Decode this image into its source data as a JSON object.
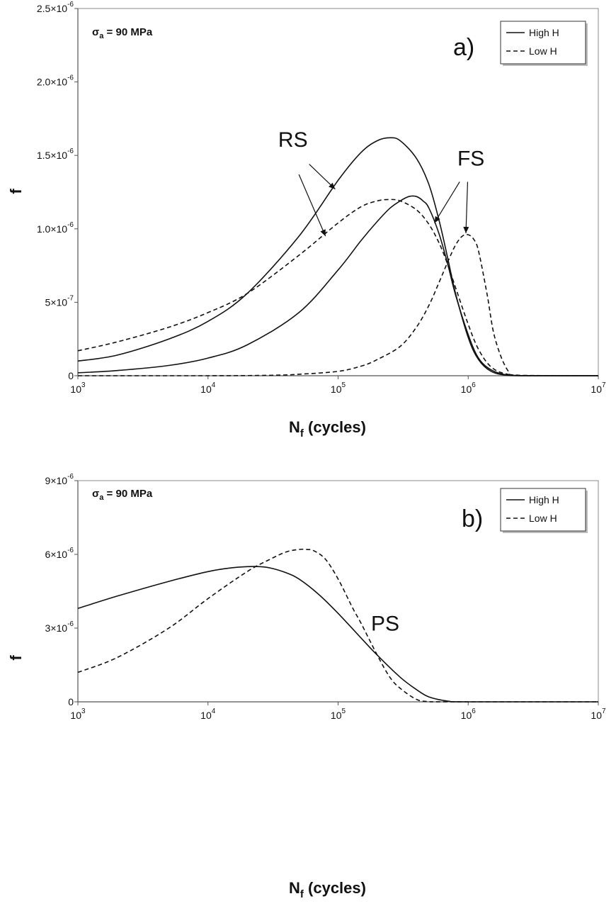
{
  "chart_data": [
    {
      "type": "line",
      "panel_label": "a)",
      "stress_label": {
        "sigma": "σ",
        "sub": "a",
        "rest": " = 90 MPa"
      },
      "xlabel": {
        "main": "N",
        "sub": "f",
        "rest": " (cycles)"
      },
      "ylabel": "f",
      "x_scale": "log",
      "xlim": [
        1000,
        10000000
      ],
      "ylim": [
        0,
        2.5e-06
      ],
      "x_ticks": [
        {
          "value": 1000,
          "base": "10",
          "exp": "3"
        },
        {
          "value": 10000,
          "base": "10",
          "exp": "4"
        },
        {
          "value": 100000,
          "base": "10",
          "exp": "5"
        },
        {
          "value": 1000000,
          "base": "10",
          "exp": "6"
        },
        {
          "value": 10000000,
          "base": "10",
          "exp": "7"
        }
      ],
      "y_ticks": [
        {
          "value": 0,
          "mant": "0",
          "exp": ""
        },
        {
          "value": 5e-07,
          "mant": "5×10",
          "exp": "-7"
        },
        {
          "value": 1e-06,
          "mant": "1.0×10",
          "exp": "-6"
        },
        {
          "value": 1.5e-06,
          "mant": "1.5×10",
          "exp": "-6"
        },
        {
          "value": 2e-06,
          "mant": "2.0×10",
          "exp": "-6"
        },
        {
          "value": 2.5e-06,
          "mant": "2.5×10",
          "exp": "-6"
        }
      ],
      "legend": [
        {
          "label": "High H",
          "style": "solid"
        },
        {
          "label": "Low H",
          "style": "dashed"
        }
      ],
      "series": [
        {
          "name": "High H (RS)",
          "style": "solid",
          "x": [
            1000,
            2000,
            5000,
            10000,
            20000,
            50000,
            100000,
            150000,
            200000,
            250000,
            300000,
            400000,
            500000,
            600000,
            700000,
            800000,
            1000000,
            1200000,
            1500000,
            2000000,
            3000000,
            10000000
          ],
          "y": [
            1e-07,
            1.4e-07,
            2.5e-07,
            3.7e-07,
            5.6e-07,
            9.5e-07,
            1.33e-06,
            1.52e-06,
            1.6e-06,
            1.62e-06,
            1.6e-06,
            1.48e-06,
            1.3e-06,
            1.05e-06,
            7.9e-07,
            5.6e-07,
            2.6e-07,
            1.1e-07,
            3e-08,
            3e-09,
            0,
            0
          ]
        },
        {
          "name": "Low H (RS)",
          "style": "dashed",
          "x": [
            1000,
            2000,
            5000,
            10000,
            20000,
            50000,
            100000,
            150000,
            200000,
            250000,
            300000,
            400000,
            500000,
            600000,
            700000,
            800000,
            1000000,
            1200000,
            1500000,
            2000000,
            3000000,
            10000000
          ],
          "y": [
            1.7e-07,
            2.3e-07,
            3.3e-07,
            4.3e-07,
            5.6e-07,
            8.2e-07,
            1.04e-06,
            1.15e-06,
            1.19e-06,
            1.2e-06,
            1.19e-06,
            1.13e-06,
            1.03e-06,
            9e-07,
            7.5e-07,
            6e-07,
            3.5e-07,
            1.8e-07,
            6e-08,
            1e-08,
            0,
            0
          ]
        },
        {
          "name": "High H (FS)",
          "style": "solid",
          "x": [
            1000,
            2000,
            5000,
            10000,
            20000,
            50000,
            100000,
            150000,
            200000,
            250000,
            300000,
            350000,
            400000,
            450000,
            500000,
            600000,
            700000,
            800000,
            1000000,
            1200000,
            1500000,
            2000000,
            3000000,
            10000000
          ],
          "y": [
            2e-08,
            3.5e-08,
            7e-08,
            1.2e-07,
            2.1e-07,
            4.3e-07,
            7.2e-07,
            9.2e-07,
            1.05e-06,
            1.14e-06,
            1.19e-06,
            1.22e-06,
            1.22e-06,
            1.19e-06,
            1.14e-06,
            9.6e-07,
            7.5e-07,
            5.5e-07,
            2.8e-07,
            1.2e-07,
            4e-08,
            5e-09,
            0,
            0
          ]
        },
        {
          "name": "Low H (FS)",
          "style": "dashed",
          "x": [
            1000,
            10000,
            30000,
            50000,
            100000,
            150000,
            200000,
            300000,
            400000,
            500000,
            600000,
            700000,
            800000,
            900000,
            1000000,
            1100000,
            1200000,
            1400000,
            1600000,
            2000000,
            2500000,
            10000000
          ],
          "y": [
            0,
            0,
            3e-09,
            1e-08,
            3e-08,
            6.5e-08,
            1.1e-07,
            2e-07,
            3.3e-07,
            4.8e-07,
            6.4e-07,
            7.8e-07,
            8.9e-07,
            9.5e-07,
            9.6e-07,
            9.3e-07,
            8.5e-07,
            5.5e-07,
            2.6e-07,
            4e-08,
            3e-09,
            0
          ]
        }
      ],
      "annotations": [
        {
          "text": "RS",
          "x": 45000,
          "y": 1.56e-06,
          "arrows": [
            {
              "x": 95000,
              "y": 1.27e-06,
              "fx": 60000,
              "fy": 1.44e-06
            },
            {
              "x": 80000,
              "y": 9.5e-07,
              "fx": 50000,
              "fy": 1.37e-06
            }
          ]
        },
        {
          "text": "FS",
          "x": 1050000,
          "y": 1.43e-06,
          "arrows": [
            {
              "x": 550000,
              "y": 1.04e-06,
              "fx": 860000,
              "fy": 1.32e-06
            },
            {
              "x": 960000,
              "y": 9.7e-07,
              "fx": 990000,
              "fy": 1.32e-06
            }
          ]
        }
      ]
    },
    {
      "type": "line",
      "panel_label": "b)",
      "stress_label": {
        "sigma": "σ",
        "sub": "a",
        "rest": " = 90 MPa"
      },
      "xlabel": {
        "main": "N",
        "sub": "f",
        "rest": " (cycles)"
      },
      "ylabel": "f",
      "x_scale": "log",
      "xlim": [
        1000,
        10000000
      ],
      "ylim": [
        0,
        9e-06
      ],
      "x_ticks": [
        {
          "value": 1000,
          "base": "10",
          "exp": "3"
        },
        {
          "value": 10000,
          "base": "10",
          "exp": "4"
        },
        {
          "value": 100000,
          "base": "10",
          "exp": "5"
        },
        {
          "value": 1000000,
          "base": "10",
          "exp": "6"
        },
        {
          "value": 10000000,
          "base": "10",
          "exp": "7"
        }
      ],
      "y_ticks": [
        {
          "value": 0,
          "mant": "0",
          "exp": ""
        },
        {
          "value": 3e-06,
          "mant": "3×10",
          "exp": "-6"
        },
        {
          "value": 6e-06,
          "mant": "6×10",
          "exp": "-6"
        },
        {
          "value": 9e-06,
          "mant": "9×10",
          "exp": "-6"
        }
      ],
      "legend": [
        {
          "label": "High H",
          "style": "solid"
        },
        {
          "label": "Low H",
          "style": "dashed"
        }
      ],
      "series": [
        {
          "name": "High H (PS)",
          "style": "solid",
          "x": [
            1000,
            2000,
            5000,
            10000,
            15000,
            20000,
            25000,
            30000,
            40000,
            50000,
            70000,
            100000,
            150000,
            200000,
            300000,
            400000,
            500000,
            700000,
            1000000,
            10000000
          ],
          "y": [
            3.8e-06,
            4.3e-06,
            4.9e-06,
            5.3e-06,
            5.45e-06,
            5.5e-06,
            5.5e-06,
            5.45e-06,
            5.25e-06,
            5e-06,
            4.4e-06,
            3.6e-06,
            2.6e-06,
            1.9e-06,
            1e-06,
            5e-07,
            2e-07,
            3e-08,
            0,
            0
          ]
        },
        {
          "name": "Low H (PS)",
          "style": "dashed",
          "x": [
            1000,
            2000,
            5000,
            10000,
            20000,
            30000,
            40000,
            50000,
            57000,
            65000,
            80000,
            100000,
            130000,
            150000,
            200000,
            250000,
            300000,
            400000,
            500000,
            700000,
            10000000
          ],
          "y": [
            1.2e-06,
            1.8e-06,
            3e-06,
            4.2e-06,
            5.3e-06,
            5.8e-06,
            6.1e-06,
            6.2e-06,
            6.2e-06,
            6.15e-06,
            5.8e-06,
            5e-06,
            3.8e-06,
            3.2e-06,
            1.9e-06,
            1e-06,
            5.5e-07,
            1e-07,
            1e-08,
            0,
            0
          ]
        }
      ],
      "annotations": [
        {
          "text": "PS",
          "x": 230000,
          "y": 2.9e-06,
          "arrows": []
        }
      ]
    }
  ]
}
